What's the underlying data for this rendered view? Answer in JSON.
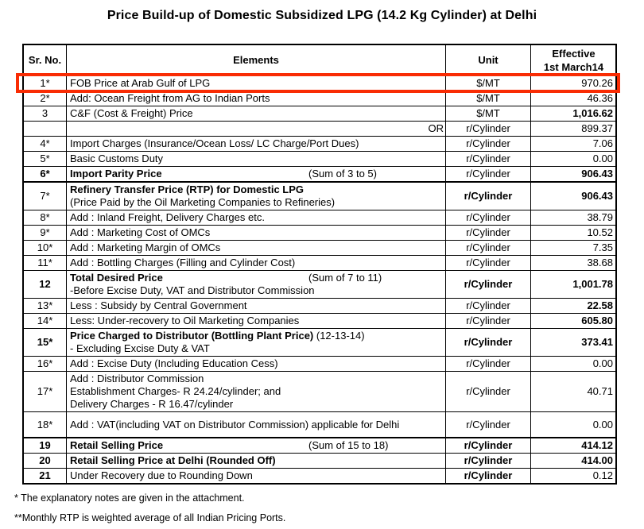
{
  "title": "Price Build-up of Domestic Subsidized LPG (14.2 Kg Cylinder) at Delhi",
  "highlight": {
    "color": "#f92c04",
    "highlighted_row_sr": "1*"
  },
  "footnotes": [
    "* The explanatory notes are given in the attachment.",
    "**Monthly RTP is weighted average of all Indian Pricing Ports."
  ],
  "table": {
    "headers": {
      "sr": "Sr. No.",
      "elements": "Elements",
      "unit": "Unit",
      "effective_line1": "Effective",
      "effective_line2": "1st March14"
    },
    "rows": [
      {
        "sr": "1*",
        "lines": [
          [
            {
              "t": "FOB Price at Arab Gulf of LPG"
            }
          ]
        ],
        "unit": "$/MT",
        "value": "970.26",
        "highlight": true
      },
      {
        "sr": "2*",
        "lines": [
          [
            {
              "t": "Add: Ocean Freight from AG to Indian Ports"
            }
          ]
        ],
        "unit": "$/MT",
        "value": "46.36"
      },
      {
        "sr": "3",
        "lines": [
          [
            {
              "t": "C&F (Cost & Freight) Price"
            }
          ]
        ],
        "unit": "$/MT",
        "value": "1,016.62",
        "valueBold": true
      },
      {
        "sr": "",
        "lines": [
          [
            {
              "t": "OR"
            }
          ]
        ],
        "alignRight": true,
        "unit": "r/Cylinder",
        "value": "899.37"
      },
      {
        "sr": "4*",
        "lines": [
          [
            {
              "t": "Import Charges (Insurance/Ocean Loss/ LC Charge/Port Dues)"
            }
          ]
        ],
        "unit": "r/Cylinder",
        "value": "7.06"
      },
      {
        "sr": "5*",
        "lines": [
          [
            {
              "t": "Basic Customs Duty"
            }
          ]
        ],
        "unit": "r/Cylinder",
        "value": "0.00"
      },
      {
        "sr": "6*",
        "srBold": true,
        "lines": [
          [
            {
              "t": "Import Parity Price",
              "b": true
            }
          ]
        ],
        "note": "(Sum of 3 to 5)",
        "unit": "r/Cylinder",
        "value": "906.43",
        "valueBold": true
      },
      {
        "sr": "7*",
        "thickTop": true,
        "lines": [
          [
            {
              "t": "Refinery Transfer Price (RTP) for Domestic LPG",
              "b": true
            }
          ],
          [
            {
              "t": "(Price Paid by the Oil Marketing Companies to Refineries)"
            }
          ]
        ],
        "unit": "r/Cylinder",
        "unitBold": true,
        "value": "906.43",
        "valueBold": true
      },
      {
        "sr": "8*",
        "lines": [
          [
            {
              "t": "Add : Inland Freight, Delivery Charges etc."
            }
          ]
        ],
        "unit": "r/Cylinder",
        "value": "38.79"
      },
      {
        "sr": "9*",
        "lines": [
          [
            {
              "t": "Add : Marketing Cost of OMCs"
            }
          ]
        ],
        "unit": "r/Cylinder",
        "value": "10.52"
      },
      {
        "sr": "10*",
        "lines": [
          [
            {
              "t": "Add : Marketing Margin of OMCs"
            }
          ]
        ],
        "unit": "r/Cylinder",
        "value": "7.35"
      },
      {
        "sr": "11*",
        "lines": [
          [
            {
              "t": "Add : Bottling Charges (Filling and Cylinder Cost)"
            }
          ]
        ],
        "unit": "r/Cylinder",
        "value": "38.68"
      },
      {
        "sr": "12",
        "srBold": true,
        "lines": [
          [
            {
              "t": "Total Desired Price",
              "b": true
            }
          ],
          [
            {
              "t": "-Before Excise Duty, VAT and Distributor Commission"
            }
          ]
        ],
        "note": "(Sum of 7 to 11)",
        "unit": "r/Cylinder",
        "unitBold": true,
        "value": "1,001.78",
        "valueBold": true
      },
      {
        "sr": "13*",
        "lines": [
          [
            {
              "t": "Less : Subsidy by Central Government"
            }
          ]
        ],
        "unit": "r/Cylinder",
        "value": "22.58",
        "valueBold": true
      },
      {
        "sr": "14*",
        "lines": [
          [
            {
              "t": "Less: Under-recovery to Oil Marketing Companies"
            }
          ]
        ],
        "unit": "r/Cylinder",
        "value": "605.80",
        "valueBold": true
      },
      {
        "sr": "15*",
        "srBold": true,
        "lines": [
          [
            {
              "t": "Price Charged to Distributor (Bottling Plant Price)",
              "b": true
            },
            {
              "t": "  (12-13-14)"
            }
          ],
          [
            {
              "t": "- Excluding Excise Duty & VAT"
            }
          ]
        ],
        "unit": "r/Cylinder",
        "unitBold": true,
        "value": "373.41",
        "valueBold": true
      },
      {
        "sr": "16*",
        "lines": [
          [
            {
              "t": "Add : Excise Duty (Including Education Cess)"
            }
          ]
        ],
        "unit": "r/Cylinder",
        "value": "0.00"
      },
      {
        "sr": "17*",
        "lines": [
          [
            {
              "t": "Add : Distributor Commission"
            }
          ],
          [
            {
              "t": "Establishment Charges- R 24.24/cylinder; and"
            }
          ],
          [
            {
              "t": "Delivery Charges - R 16.47/cylinder"
            }
          ]
        ],
        "unit": "r/Cylinder",
        "value": "40.71"
      },
      {
        "sr": "18*",
        "tall": true,
        "lines": [
          [
            {
              "t": "Add : VAT(including VAT on Distributor Commission) applicable for Delhi"
            }
          ]
        ],
        "unit": "r/Cylinder",
        "value": "0.00"
      },
      {
        "sr": "19",
        "srBold": true,
        "thickTop": true,
        "lines": [
          [
            {
              "t": "Retail Selling Price",
              "b": true
            }
          ]
        ],
        "note": "(Sum of 15 to 18)",
        "unit": "r/Cylinder",
        "unitBold": true,
        "value": "414.12",
        "valueBold": true
      },
      {
        "sr": "20",
        "srBold": true,
        "lines": [
          [
            {
              "t": "Retail Selling Price at Delhi (Rounded Off)",
              "b": true
            }
          ]
        ],
        "unit": "r/Cylinder",
        "unitBold": true,
        "value": "414.00",
        "valueBold": true
      },
      {
        "sr": "21",
        "srBold": true,
        "lines": [
          [
            {
              "t": "Under Recovery due to Rounding Down"
            }
          ]
        ],
        "unit": "r/Cylinder",
        "unitBold": true,
        "value": "0.12"
      }
    ]
  }
}
